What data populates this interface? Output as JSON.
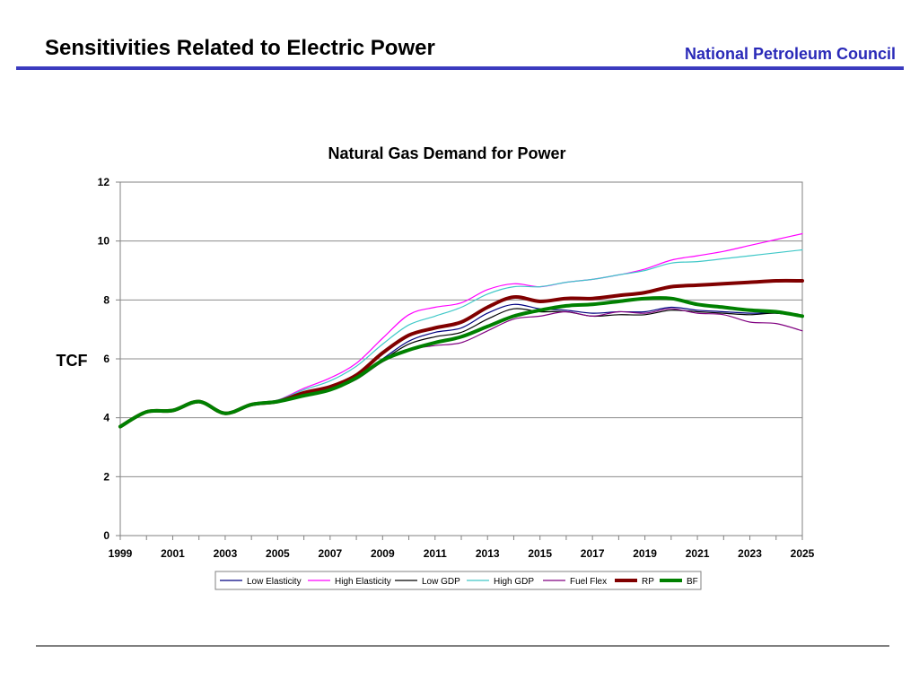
{
  "slide": {
    "title": "Sensitivities Related to Electric Power",
    "organization": "National Petroleum Council",
    "accent_color": "#3b3bbf"
  },
  "chart_data": {
    "type": "line",
    "title": "Natural Gas Demand for Power",
    "xlabel": "",
    "ylabel": "TCF",
    "xlim": [
      1999,
      2025
    ],
    "ylim": [
      0,
      12
    ],
    "x_ticks": [
      1999,
      2001,
      2003,
      2005,
      2007,
      2009,
      2011,
      2013,
      2015,
      2017,
      2019,
      2021,
      2023,
      2025
    ],
    "y_ticks": [
      0,
      2,
      4,
      6,
      8,
      10,
      12
    ],
    "grid": true,
    "legend": "bottom",
    "x": [
      1999,
      2000,
      2001,
      2002,
      2003,
      2004,
      2005,
      2006,
      2007,
      2008,
      2009,
      2010,
      2011,
      2012,
      2013,
      2014,
      2015,
      2016,
      2017,
      2018,
      2019,
      2020,
      2021,
      2022,
      2023,
      2024,
      2025
    ],
    "series": [
      {
        "name": "Low Elasticity",
        "color": "#000080",
        "width": 1.2,
        "values": [
          3.7,
          4.2,
          4.25,
          4.55,
          4.15,
          4.45,
          4.55,
          4.8,
          5.0,
          5.4,
          6.0,
          6.6,
          6.9,
          7.05,
          7.55,
          7.85,
          7.7,
          7.65,
          7.55,
          7.6,
          7.6,
          7.75,
          7.65,
          7.6,
          7.55,
          7.55,
          7.45
        ]
      },
      {
        "name": "High Elasticity",
        "color": "#ff00ff",
        "width": 1.2,
        "values": [
          3.7,
          4.2,
          4.25,
          4.55,
          4.15,
          4.45,
          4.6,
          5.0,
          5.35,
          5.85,
          6.7,
          7.5,
          7.75,
          7.9,
          8.35,
          8.55,
          8.45,
          8.6,
          8.7,
          8.85,
          9.05,
          9.35,
          9.5,
          9.65,
          9.85,
          10.05,
          10.25
        ]
      },
      {
        "name": "Low GDP",
        "color": "#000000",
        "width": 1.2,
        "values": [
          3.7,
          4.2,
          4.25,
          4.55,
          4.15,
          4.45,
          4.55,
          4.75,
          4.95,
          5.35,
          5.95,
          6.5,
          6.75,
          6.9,
          7.35,
          7.7,
          7.6,
          7.6,
          7.45,
          7.5,
          7.5,
          7.65,
          7.6,
          7.55,
          7.5,
          7.55,
          7.45
        ]
      },
      {
        "name": "High GDP",
        "color": "#40c8c8",
        "width": 1.2,
        "values": [
          3.7,
          4.2,
          4.25,
          4.55,
          4.15,
          4.45,
          4.6,
          4.95,
          5.25,
          5.75,
          6.5,
          7.15,
          7.45,
          7.75,
          8.2,
          8.45,
          8.45,
          8.6,
          8.7,
          8.85,
          9.0,
          9.25,
          9.3,
          9.4,
          9.5,
          9.6,
          9.7
        ]
      },
      {
        "name": "Fuel Flex",
        "color": "#800080",
        "width": 1.2,
        "values": [
          3.7,
          4.2,
          4.25,
          4.55,
          4.15,
          4.45,
          4.55,
          4.75,
          4.95,
          5.3,
          5.9,
          6.3,
          6.45,
          6.55,
          6.95,
          7.35,
          7.45,
          7.6,
          7.45,
          7.6,
          7.55,
          7.7,
          7.55,
          7.5,
          7.25,
          7.2,
          6.95
        ]
      },
      {
        "name": "RP",
        "color": "#800000",
        "width": 4,
        "values": [
          3.7,
          4.2,
          4.25,
          4.55,
          4.15,
          4.45,
          4.55,
          4.85,
          5.05,
          5.45,
          6.2,
          6.8,
          7.05,
          7.25,
          7.75,
          8.1,
          7.95,
          8.05,
          8.05,
          8.15,
          8.25,
          8.45,
          8.5,
          8.55,
          8.6,
          8.65,
          8.65
        ]
      },
      {
        "name": "BF",
        "color": "#008000",
        "width": 4,
        "values": [
          3.7,
          4.2,
          4.25,
          4.55,
          4.15,
          4.45,
          4.55,
          4.75,
          4.95,
          5.35,
          5.95,
          6.3,
          6.55,
          6.75,
          7.1,
          7.45,
          7.65,
          7.8,
          7.85,
          7.95,
          8.05,
          8.05,
          7.85,
          7.75,
          7.65,
          7.6,
          7.45
        ]
      }
    ]
  }
}
